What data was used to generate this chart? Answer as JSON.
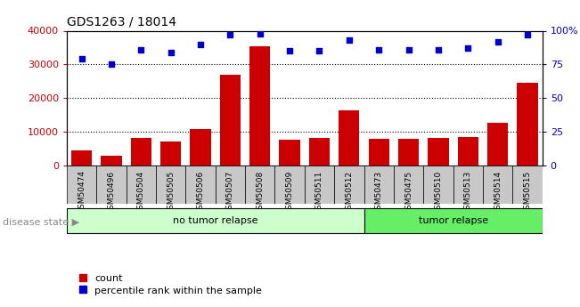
{
  "title": "GDS1263 / 18014",
  "categories": [
    "GSM50474",
    "GSM50496",
    "GSM50504",
    "GSM50505",
    "GSM50506",
    "GSM50507",
    "GSM50508",
    "GSM50509",
    "GSM50511",
    "GSM50512",
    "GSM50473",
    "GSM50475",
    "GSM50510",
    "GSM50513",
    "GSM50514",
    "GSM50515"
  ],
  "counts": [
    4500,
    3000,
    8200,
    7200,
    11000,
    27000,
    35500,
    7800,
    8200,
    16500,
    8000,
    8000,
    8200,
    8500,
    12800,
    24500
  ],
  "percentiles": [
    79,
    75,
    86,
    84,
    90,
    97,
    98,
    85,
    85,
    93,
    86,
    86,
    86,
    87,
    92,
    97
  ],
  "bar_color": "#cc0000",
  "dot_color": "#0000cc",
  "ylim_left": [
    0,
    40000
  ],
  "ylim_right": [
    0,
    100
  ],
  "yticks_left": [
    0,
    10000,
    20000,
    30000,
    40000
  ],
  "yticks_right": [
    0,
    25,
    50,
    75,
    100
  ],
  "ytick_labels_right": [
    "0",
    "25",
    "50",
    "75",
    "100%"
  ],
  "no_tumor_count": 10,
  "tumor_count": 6,
  "group1_label": "no tumor relapse",
  "group2_label": "tumor relapse",
  "disease_state_label": "disease state",
  "legend_count_label": "count",
  "legend_pct_label": "percentile rank within the sample",
  "bg_color": "#ffffff",
  "plot_bg_color": "#ffffff",
  "group1_color": "#ccffcc",
  "group2_color": "#66ee66",
  "tick_bg_color": "#c8c8c8",
  "grid_color": "#000000",
  "left_axis_color": "#cc0000",
  "right_axis_color": "#0000cc"
}
